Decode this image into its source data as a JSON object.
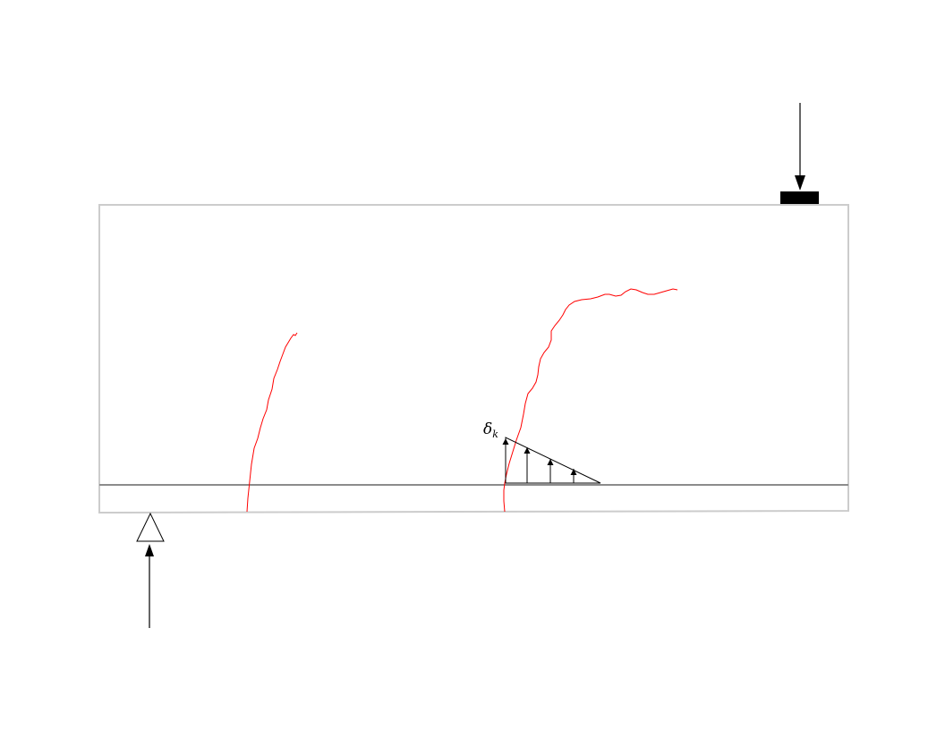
{
  "colors": {
    "beam_outline": "#cccccc",
    "reinforcement": "#8c8c8c",
    "crack": "#ff0000",
    "ink": "#000000",
    "background": "#ffffff"
  },
  "annotation": {
    "symbol": "δ",
    "subscript": "k"
  },
  "elements": {
    "beam": "concrete-beam",
    "rebar": "longitudinal-reinforcement",
    "load": "applied-point-load",
    "bearing_plate": "loading-plate",
    "support": "pin-support",
    "reaction": "support-reaction",
    "cracks": [
      "flexure-shear-crack-left",
      "critical-shear-crack"
    ],
    "crack_opening_profile": "crack-opening-distribution"
  }
}
